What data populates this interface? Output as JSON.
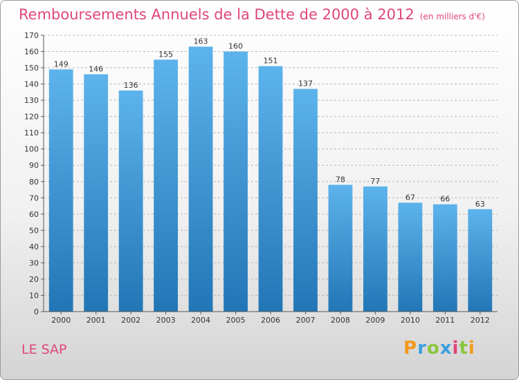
{
  "title": "Remboursements Annuels de la Dette de 2000 à 2012",
  "unit": "(en milliers d'€)",
  "commune": "LE SAP",
  "logo": {
    "text": "Proxiti"
  },
  "colors": {
    "bar_light": "#5db3eb",
    "bar_dark": "#2276b6",
    "title": "#e0467a"
  },
  "chart_data": {
    "type": "bar",
    "categories": [
      "2000",
      "2001",
      "2002",
      "2003",
      "2004",
      "2005",
      "2006",
      "2007",
      "2008",
      "2009",
      "2010",
      "2011",
      "2012"
    ],
    "values": [
      149,
      146,
      136,
      155,
      163,
      160,
      151,
      137,
      78,
      77,
      67,
      66,
      63
    ],
    "ylim": [
      0,
      170
    ],
    "yticks": [
      0,
      10,
      20,
      30,
      40,
      50,
      60,
      70,
      80,
      90,
      100,
      110,
      120,
      130,
      140,
      150,
      160,
      170
    ],
    "grid": true,
    "xlabel": "",
    "ylabel": ""
  }
}
